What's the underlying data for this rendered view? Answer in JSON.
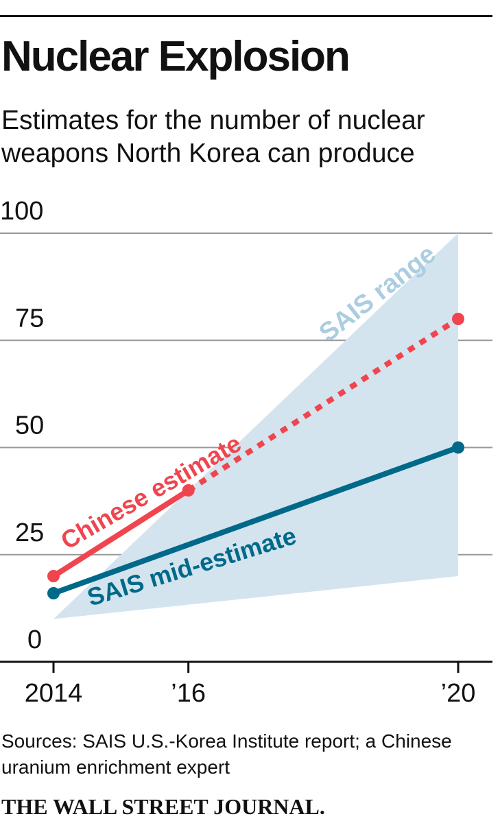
{
  "title": "Nuclear Explosion",
  "subtitle": "Estimates for the number of nuclear weapons North Korea can produce",
  "source": "Sources: SAIS U.S.-Korea Institute report; a Chinese uranium enrichment expert",
  "branding": "THE WALL STREET JOURNAL.",
  "colors": {
    "chinese": "#f0454e",
    "sais_mid": "#006989",
    "sais_range": "#d3e4ef",
    "range_label": "#abcde0",
    "grid": "#999999",
    "text": "#111111"
  },
  "chart_data": {
    "type": "line",
    "x_ticks": [
      "2014",
      "’16",
      "’20"
    ],
    "x_tick_values": [
      2014,
      2016,
      2020
    ],
    "y_ticks": [
      "0",
      "25",
      "50",
      "75",
      "100"
    ],
    "y_tick_values": [
      0,
      25,
      50,
      75,
      100
    ],
    "xlim": [
      2014,
      2020
    ],
    "ylim": [
      0,
      100
    ],
    "grid": true,
    "range": {
      "name": "SAIS range",
      "x": [
        2014,
        2020
      ],
      "low": [
        10,
        20
      ],
      "high": [
        10,
        100
      ]
    },
    "series": [
      {
        "name": "Chinese estimate",
        "x": [
          2014,
          2016
        ],
        "y": [
          20,
          40
        ],
        "projection": {
          "x": [
            2016,
            2020
          ],
          "y": [
            40,
            80
          ]
        }
      },
      {
        "name": "SAIS mid-estimate",
        "x": [
          2014,
          2020
        ],
        "y": [
          16,
          50
        ]
      }
    ]
  }
}
